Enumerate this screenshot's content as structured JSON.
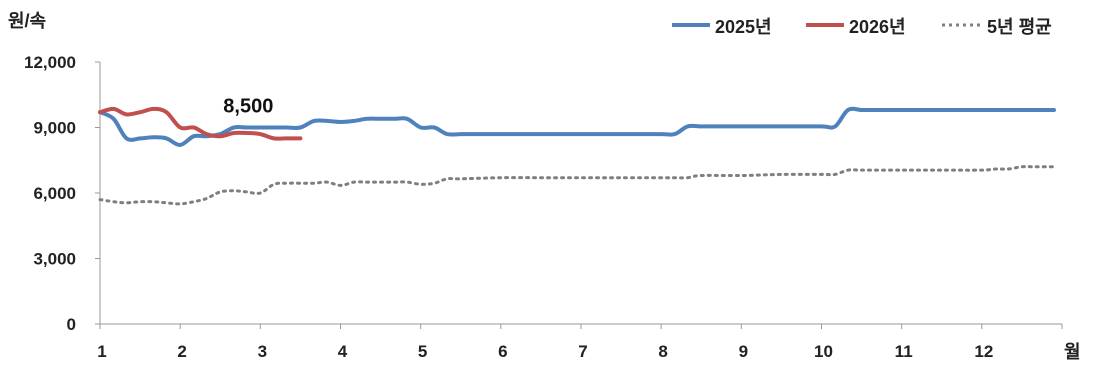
{
  "chart_data": {
    "type": "line",
    "ylabel": "원/속",
    "xlabel": "월",
    "ylim": [
      0,
      12000
    ],
    "xlim": [
      1,
      13
    ],
    "grid": false,
    "legend_position": "top-right",
    "y_ticks": [
      {
        "value": 0,
        "label": "0"
      },
      {
        "value": 3000,
        "label": "3,000"
      },
      {
        "value": 6000,
        "label": "6,000"
      },
      {
        "value": 9000,
        "label": "9,000"
      },
      {
        "value": 12000,
        "label": "12,000"
      }
    ],
    "x_ticks": [
      {
        "value": 1,
        "label": "1"
      },
      {
        "value": 2,
        "label": "2"
      },
      {
        "value": 3,
        "label": "3"
      },
      {
        "value": 4,
        "label": "4"
      },
      {
        "value": 5,
        "label": "5"
      },
      {
        "value": 6,
        "label": "6"
      },
      {
        "value": 7,
        "label": "7"
      },
      {
        "value": 8,
        "label": "8"
      },
      {
        "value": 9,
        "label": "9"
      },
      {
        "value": 10,
        "label": "10"
      },
      {
        "value": 11,
        "label": "11"
      },
      {
        "value": 12,
        "label": "12"
      }
    ],
    "series": [
      {
        "name": "2025년",
        "color": "#4f81bd",
        "style": "solid",
        "x": [
          1.0,
          1.17,
          1.33,
          1.5,
          1.67,
          1.83,
          2.0,
          2.17,
          2.33,
          2.5,
          2.67,
          2.83,
          3.0,
          3.17,
          3.33,
          3.5,
          3.67,
          3.83,
          4.0,
          4.17,
          4.33,
          4.5,
          4.67,
          4.83,
          5.0,
          5.17,
          5.33,
          5.5,
          5.67,
          5.83,
          6.0,
          6.5,
          7.0,
          7.5,
          8.0,
          8.17,
          8.33,
          8.5,
          8.67,
          8.83,
          9.0,
          9.5,
          10.0,
          10.17,
          10.33,
          10.5,
          10.67,
          10.83,
          11.0,
          11.5,
          12.0,
          12.5,
          12.9
        ],
        "y": [
          9700,
          9400,
          8500,
          8500,
          8550,
          8500,
          8200,
          8600,
          8600,
          8700,
          9000,
          9000,
          9000,
          9000,
          9000,
          9000,
          9300,
          9300,
          9250,
          9300,
          9400,
          9400,
          9400,
          9400,
          9000,
          9000,
          8700,
          8700,
          8700,
          8700,
          8700,
          8700,
          8700,
          8700,
          8700,
          8700,
          9050,
          9050,
          9050,
          9050,
          9050,
          9050,
          9050,
          9050,
          9800,
          9800,
          9800,
          9800,
          9800,
          9800,
          9800,
          9800,
          9800
        ]
      },
      {
        "name": "2026년",
        "color": "#c0504d",
        "style": "solid",
        "x": [
          1.0,
          1.17,
          1.33,
          1.5,
          1.67,
          1.83,
          2.0,
          2.17,
          2.33,
          2.5,
          2.67,
          2.83,
          3.0,
          3.17,
          3.33,
          3.5
        ],
        "y": [
          9700,
          9850,
          9600,
          9700,
          9850,
          9700,
          9000,
          9000,
          8700,
          8600,
          8750,
          8750,
          8700,
          8500,
          8500,
          8500
        ]
      },
      {
        "name": "5년 평균",
        "color": "#7f7f7f",
        "style": "dotted",
        "x": [
          1.0,
          1.17,
          1.33,
          1.5,
          1.67,
          1.83,
          2.0,
          2.17,
          2.33,
          2.5,
          2.67,
          2.83,
          3.0,
          3.17,
          3.33,
          3.5,
          3.67,
          3.83,
          4.0,
          4.17,
          4.33,
          4.5,
          4.67,
          4.83,
          5.0,
          5.17,
          5.33,
          5.5,
          6.0,
          6.5,
          7.0,
          7.5,
          8.0,
          8.17,
          8.33,
          8.5,
          9.0,
          9.5,
          10.0,
          10.17,
          10.33,
          10.5,
          11.0,
          11.5,
          12.0,
          12.17,
          12.33,
          12.5,
          12.67,
          12.9
        ],
        "y": [
          5700,
          5600,
          5550,
          5600,
          5600,
          5550,
          5500,
          5600,
          5750,
          6050,
          6100,
          6050,
          6000,
          6400,
          6450,
          6450,
          6450,
          6500,
          6350,
          6500,
          6500,
          6500,
          6500,
          6500,
          6400,
          6450,
          6650,
          6650,
          6700,
          6700,
          6700,
          6700,
          6700,
          6700,
          6700,
          6800,
          6800,
          6850,
          6850,
          6850,
          7050,
          7050,
          7050,
          7050,
          7050,
          7100,
          7100,
          7200,
          7200,
          7200
        ]
      }
    ],
    "annotations": [
      {
        "text": "8,500",
        "x": 2.85,
        "y": 10000
      }
    ]
  }
}
